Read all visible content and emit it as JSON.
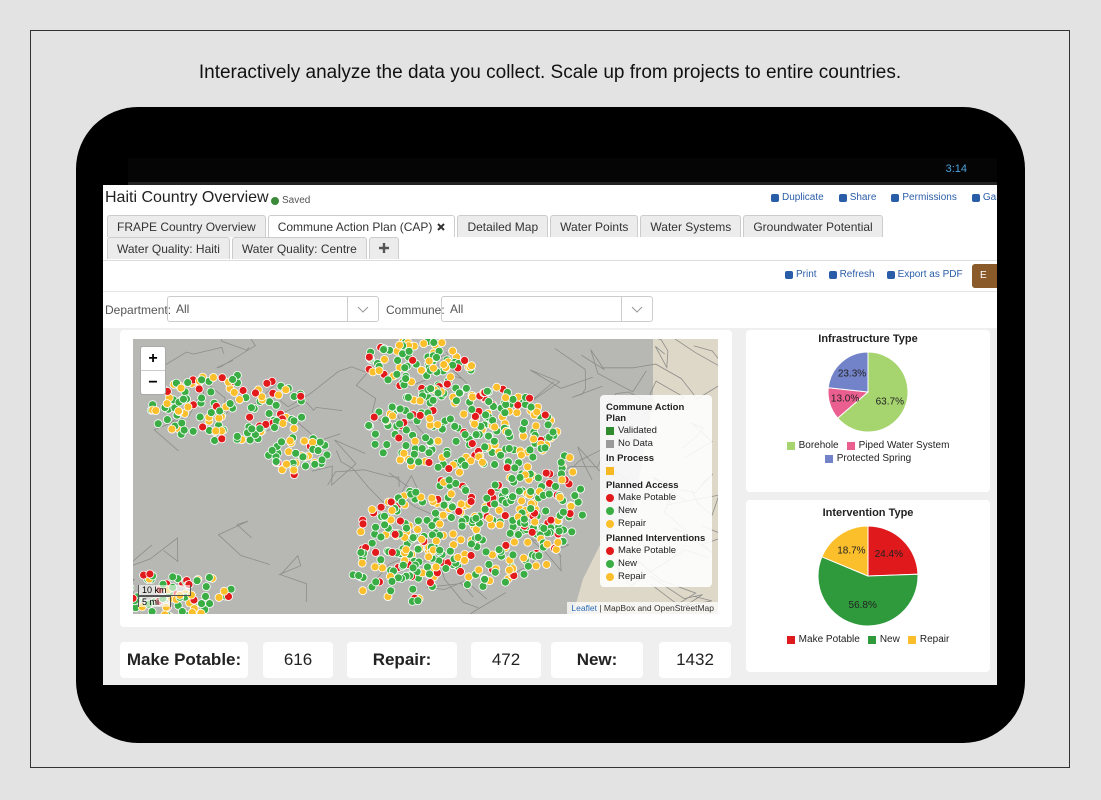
{
  "caption": "Interactively analyze the data you collect. Scale up from projects to entire countries.",
  "status_bar": {
    "time": "3:14"
  },
  "header": {
    "title": "Haiti Country Overview",
    "saved": "Saved",
    "actions": [
      "Duplicate",
      "Share",
      "Permissions",
      "Galle"
    ]
  },
  "tabs": [
    "FRAPE Country Overview",
    "Commune Action Plan (CAP)",
    "Detailed Map",
    "Water Points",
    "Water Systems",
    "Groundwater Potential",
    "Water Quality: Haiti",
    "Water Quality: Centre"
  ],
  "active_tab": 1,
  "toolbar": {
    "actions": [
      "Print",
      "Refresh",
      "Export as PDF"
    ],
    "button": "E"
  },
  "filters": [
    {
      "label": "Department:",
      "value": "All"
    },
    {
      "label": "Commune:",
      "value": "All"
    }
  ],
  "map": {
    "zoom": [
      "+",
      "−"
    ],
    "scale": [
      "10 km",
      "5 mi"
    ],
    "attribution": {
      "link": "Leaflet",
      "text": "| MapBox and OpenStreetMap"
    },
    "legend": [
      {
        "heading": "Commune Action Plan",
        "items": [
          {
            "label": "Validated",
            "color": "#2e8b2e",
            "shape": "square"
          },
          {
            "label": "No Data",
            "color": "#9a9a9a",
            "shape": "square"
          }
        ]
      },
      {
        "heading": "In Process",
        "items": [
          {
            "color": "#f6b924",
            "shape": "square"
          }
        ]
      },
      {
        "heading": "Planned Access",
        "items": [
          {
            "label": "Make Potable",
            "color": "#e31a1c",
            "shape": "dot"
          },
          {
            "label": "New",
            "color": "#3aae45",
            "shape": "dot"
          },
          {
            "label": "Repair",
            "color": "#fbbf2c",
            "shape": "dot"
          }
        ]
      },
      {
        "heading": "Planned Interventions",
        "items": [
          {
            "label": "Make Potable",
            "color": "#e31a1c",
            "shape": "dot"
          },
          {
            "label": "New",
            "color": "#3aae45",
            "shape": "dot"
          },
          {
            "label": "Repair",
            "color": "#fbbf2c",
            "shape": "dot"
          }
        ]
      }
    ]
  },
  "chart_data": [
    {
      "type": "pie",
      "title": "Infrastructure Type",
      "categories": [
        "Borehole",
        "Piped Water System",
        "Protected Spring"
      ],
      "colors": [
        "#a6d46f",
        "#ea5f8f",
        "#7383c9"
      ],
      "values": [
        63.7,
        13.0,
        23.3
      ],
      "value_labels": [
        "63.7%",
        "13.0%",
        "23.3%"
      ]
    },
    {
      "type": "pie",
      "title": "Intervention Type",
      "categories": [
        "Make Potable",
        "New",
        "Repair"
      ],
      "colors": [
        "#e0191c",
        "#2f9a3c",
        "#fbbf2c"
      ],
      "values": [
        24.4,
        56.8,
        18.7
      ],
      "value_labels": [
        "24.4%",
        "56.8%",
        "18.7%"
      ]
    }
  ],
  "totals": [
    {
      "label": "Make Potable:",
      "value": 616
    },
    {
      "label": "Repair:",
      "value": 472
    },
    {
      "label": "New:",
      "value": 1432
    }
  ]
}
